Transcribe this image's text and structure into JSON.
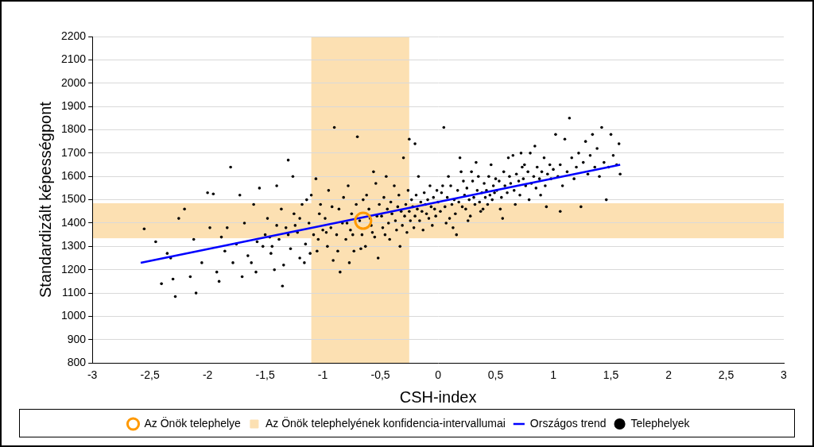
{
  "chart_data": {
    "type": "scatter",
    "xlabel": "CSH-index",
    "ylabel": "Standardizált képességpont",
    "xlim": [
      -3,
      3
    ],
    "ylim": [
      800,
      2200
    ],
    "xticks": [
      {
        "value": -3,
        "label": "-3"
      },
      {
        "value": -2.5,
        "label": "-2,5"
      },
      {
        "value": -2,
        "label": "-2"
      },
      {
        "value": -1.5,
        "label": "-1,5"
      },
      {
        "value": -1,
        "label": "-1"
      },
      {
        "value": -0.5,
        "label": "-0,5"
      },
      {
        "value": 0,
        "label": "0"
      },
      {
        "value": 0.5,
        "label": "0,5"
      },
      {
        "value": 1,
        "label": "1"
      },
      {
        "value": 1.5,
        "label": "1,5"
      },
      {
        "value": 2,
        "label": "2"
      },
      {
        "value": 2.5,
        "label": "2,5"
      },
      {
        "value": 3,
        "label": "3"
      }
    ],
    "yticks": [
      800,
      900,
      1000,
      1100,
      1200,
      1300,
      1400,
      1500,
      1600,
      1700,
      1800,
      1900,
      2000,
      2100,
      2200
    ],
    "grid": true,
    "legend": "bottom",
    "series": [
      {
        "name": "Telephelyek",
        "type": "scatter",
        "color": "#000000",
        "marker": "circle",
        "x": [
          -2.55,
          -2.45,
          -2.4,
          -2.35,
          -2.3,
          -2.28,
          -2.25,
          -2.2,
          -2.15,
          -2.1,
          -2.05,
          -2.0,
          -1.95,
          -1.9,
          -1.88,
          -1.85,
          -1.8,
          -1.78,
          -1.75,
          -1.7,
          -1.68,
          -1.65,
          -1.6,
          -1.58,
          -1.55,
          -1.52,
          -1.5,
          -1.98,
          -2.12,
          -1.72,
          -1.62,
          -2.32,
          -1.92,
          -1.83,
          -1.57,
          -1.48,
          -1.45,
          -1.42,
          -1.4,
          -1.38,
          -1.35,
          -1.32,
          -1.3,
          -1.28,
          -1.25,
          -1.22,
          -1.2,
          -1.18,
          -1.15,
          -1.12,
          -1.1,
          -1.08,
          -1.05,
          -1.03,
          -1.0,
          -1.46,
          -1.36,
          -1.26,
          -1.16,
          -1.06,
          -1.44,
          -1.34,
          -1.24,
          -1.14,
          -1.04,
          -1.2,
          -1.11,
          -1.02,
          -1.3,
          -1.4,
          -0.98,
          -0.96,
          -0.95,
          -0.93,
          -0.9,
          -0.88,
          -0.86,
          -0.85,
          -0.83,
          -0.8,
          -0.78,
          -0.76,
          -0.75,
          -0.73,
          -0.7,
          -0.68,
          -0.66,
          -0.65,
          -0.63,
          -0.6,
          -0.58,
          -0.56,
          -0.55,
          -0.53,
          -0.52,
          -0.51,
          -0.97,
          -0.92,
          -0.87,
          -0.82,
          -0.79,
          -0.74,
          -0.71,
          -0.67,
          -0.62,
          -0.59,
          -0.57,
          -0.54,
          -0.91,
          -0.77,
          -0.49,
          -0.48,
          -0.47,
          -0.46,
          -0.45,
          -0.44,
          -0.43,
          -0.42,
          -0.41,
          -0.4,
          -0.38,
          -0.37,
          -0.36,
          -0.35,
          -0.34,
          -0.33,
          -0.32,
          -0.31,
          -0.3,
          -0.29,
          -0.28,
          -0.27,
          -0.26,
          -0.25,
          -0.24,
          -0.23,
          -0.22,
          -0.21,
          -0.2,
          -0.19,
          -0.18,
          -0.17,
          -0.16,
          -0.15,
          -0.14,
          -0.13,
          -0.12,
          -0.11,
          -0.1,
          -0.09,
          -0.08,
          -0.07,
          -0.06,
          -0.05,
          -0.04,
          -0.03,
          -0.02,
          -0.01,
          -0.25,
          -0.2,
          0.0,
          0.02,
          0.03,
          0.05,
          0.06,
          0.08,
          0.1,
          0.11,
          0.12,
          0.14,
          0.15,
          0.17,
          0.18,
          0.2,
          0.21,
          0.23,
          0.24,
          0.25,
          0.27,
          0.28,
          0.3,
          0.31,
          0.32,
          0.34,
          0.35,
          0.36,
          0.38,
          0.39,
          0.4,
          0.41,
          0.42,
          0.43,
          0.44,
          0.45,
          0.46,
          0.47,
          0.48,
          0.49,
          0.5,
          0.07,
          0.13,
          0.19,
          0.26,
          0.33,
          0.37,
          0.04,
          0.09,
          0.16,
          0.22,
          0.29,
          0.51,
          0.53,
          0.55,
          0.57,
          0.58,
          0.6,
          0.62,
          0.63,
          0.65,
          0.66,
          0.68,
          0.7,
          0.71,
          0.73,
          0.74,
          0.76,
          0.78,
          0.8,
          0.81,
          0.83,
          0.85,
          0.86,
          0.88,
          0.9,
          0.92,
          0.93,
          0.95,
          0.97,
          0.98,
          1.0,
          0.54,
          0.61,
          0.67,
          0.72,
          0.79,
          0.84,
          0.89,
          0.94,
          0.56,
          0.75,
          1.02,
          1.04,
          1.06,
          1.08,
          1.1,
          1.12,
          1.14,
          1.16,
          1.18,
          1.2,
          1.22,
          1.24,
          1.26,
          1.28,
          1.3,
          1.32,
          1.34,
          1.36,
          1.38,
          1.4,
          1.42,
          1.44,
          1.46,
          1.48,
          1.5,
          1.52,
          1.55,
          1.57,
          1.58,
          1.06
        ],
        "values": [
          1375,
          1320,
          1140,
          1270,
          1160,
          1085,
          1420,
          1460,
          1170,
          1100,
          1230,
          1530,
          1525,
          1150,
          1340,
          1280,
          1640,
          1230,
          1310,
          1170,
          1400,
          1260,
          1480,
          1190,
          1550,
          1300,
          1350,
          1380,
          1330,
          1520,
          1230,
          1250,
          1190,
          1380,
          1320,
          1420,
          1270,
          1200,
          1560,
          1330,
          1130,
          1380,
          1670,
          1290,
          1440,
          1360,
          1250,
          1480,
          1310,
          1400,
          1520,
          1350,
          1280,
          1440,
          1370,
          1340,
          1460,
          1600,
          1230,
          1590,
          1300,
          1220,
          1390,
          1500,
          1330,
          1420,
          1270,
          1480,
          1350,
          1390,
          1420,
          1300,
          1540,
          1380,
          1810,
          1350,
          1460,
          1190,
          1400,
          1330,
          1560,
          1370,
          1440,
          1280,
          1770,
          1410,
          1350,
          1500,
          1300,
          1460,
          1390,
          1620,
          1340,
          1430,
          1250,
          1480,
          1360,
          1470,
          1280,
          1510,
          1400,
          1350,
          1480,
          1290,
          1520,
          1420,
          1360,
          1570,
          1240,
          1230,
          1430,
          1380,
          1510,
          1350,
          1600,
          1460,
          1400,
          1330,
          1490,
          1440,
          1560,
          1410,
          1370,
          1470,
          1520,
          1300,
          1450,
          1390,
          1680,
          1430,
          1480,
          1360,
          1540,
          1450,
          1410,
          1500,
          1470,
          1380,
          1430,
          1520,
          1460,
          1600,
          1410,
          1490,
          1450,
          1370,
          1530,
          1480,
          1440,
          1500,
          1420,
          1560,
          1470,
          1390,
          1510,
          1460,
          1430,
          1540,
          1760,
          1740,
          1490,
          1450,
          1530,
          1810,
          1470,
          1510,
          1420,
          1560,
          1480,
          1500,
          1440,
          1540,
          1490,
          1620,
          1470,
          1520,
          1460,
          1550,
          1500,
          1430,
          1580,
          1510,
          1480,
          1540,
          1600,
          1490,
          1530,
          1460,
          1570,
          1510,
          1540,
          1480,
          1600,
          1520,
          1650,
          1500,
          1560,
          1530,
          1590,
          1400,
          1380,
          1680,
          1410,
          1660,
          1450,
          1560,
          1600,
          1350,
          1580,
          1620,
          1540,
          1580,
          1510,
          1620,
          1560,
          1530,
          1600,
          1570,
          1690,
          1540,
          1610,
          1580,
          1520,
          1640,
          1590,
          1560,
          1620,
          1700,
          1570,
          1600,
          1550,
          1640,
          1590,
          1620,
          1680,
          1560,
          1610,
          1650,
          1590,
          1630,
          1460,
          1680,
          1480,
          1700,
          1500,
          1730,
          1520,
          1470,
          1420,
          1650,
          1780,
          1600,
          1650,
          1560,
          1760,
          1620,
          1850,
          1680,
          1590,
          1640,
          1700,
          1470,
          1660,
          1750,
          1610,
          1690,
          1780,
          1640,
          1720,
          1600,
          1810,
          1660,
          1500,
          1640,
          1780,
          1690,
          1650,
          1740,
          1610,
          1450
        ]
      },
      {
        "name": "Országos trend",
        "type": "line",
        "color": "#0000ff",
        "line_style": "solid",
        "x": [
          -2.58,
          1.58
        ],
        "values": [
          1230,
          1650
        ]
      },
      {
        "name": "Az Önök telephelye",
        "type": "scatter",
        "color": "#ff9900",
        "marker": "ring",
        "x": [
          -0.65
        ],
        "values": [
          1410
        ]
      },
      {
        "name": "Az Önök telephelyének konfidencia-intervallumai",
        "type": "interval",
        "color": "#fce0b2",
        "x_range": [
          -1.1,
          -0.25
        ],
        "y_range": [
          1335,
          1485
        ]
      }
    ]
  }
}
